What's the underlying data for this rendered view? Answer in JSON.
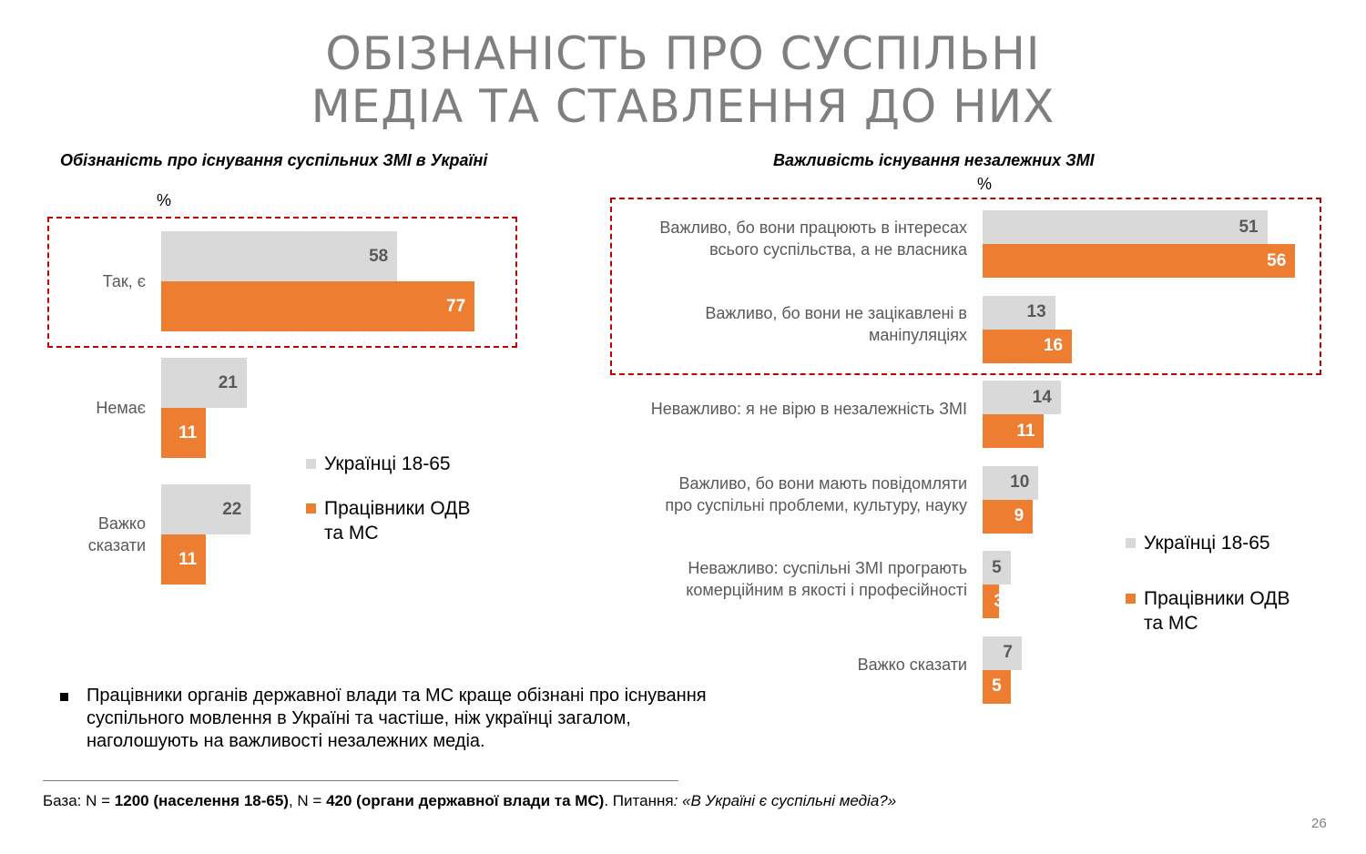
{
  "title": {
    "line1": "ОБІЗНАНІСТЬ ПРО СУСПІЛЬНІ",
    "line2": "МЕДІА ТА СТАВЛЕННЯ ДО НИХ"
  },
  "chart_data": [
    {
      "type": "bar",
      "orientation": "horizontal",
      "title": "Обізнаність про існування суспільних ЗМІ в Україні",
      "unit_label": "%",
      "categories": [
        [
          "Так, є"
        ],
        [
          "Немає"
        ],
        [
          "Важко",
          "сказати"
        ]
      ],
      "series": [
        {
          "name": "Українці 18-65",
          "color": "#d9d9d9",
          "values": [
            58,
            21,
            22
          ]
        },
        {
          "name": "Працівники ОДВ та МС",
          "name_lines": [
            "Працівники ОДВ",
            "та МС"
          ],
          "color": "#ed7d31",
          "values": [
            77,
            11,
            11
          ]
        }
      ],
      "legend": "right",
      "highlighted_categories": [
        0
      ]
    },
    {
      "type": "bar",
      "orientation": "horizontal",
      "title": "Важливість існування незалежних ЗМІ",
      "unit_label": "%",
      "categories": [
        [
          "Важливо, бо вони працюють в інтересах",
          "всього суспільства, а не власника"
        ],
        [
          "Важливо, бо вони не зацікавлені в",
          "маніпуляціях"
        ],
        [
          "Неважливо: я не вірю в незалежність ЗМІ"
        ],
        [
          "Важливо, бо вони мають повідомляти",
          "про суспільні проблеми, культуру, науку"
        ],
        [
          "Неважливо: суспільні ЗМІ програють",
          "комерційним в якості і професійності"
        ],
        [
          "Важко сказати"
        ]
      ],
      "series": [
        {
          "name": "Українці 18-65",
          "color": "#d9d9d9",
          "values": [
            51,
            13,
            14,
            10,
            5,
            7
          ]
        },
        {
          "name": "Працівники ОДВ та МС",
          "name_lines": [
            "Працівники ОДВ",
            "та МС"
          ],
          "color": "#ed7d31",
          "values": [
            56,
            16,
            11,
            9,
            3,
            5
          ]
        }
      ],
      "legend": "right",
      "highlighted_categories": [
        0,
        1
      ]
    }
  ],
  "bullet_text": "Працівники органів державної влади та МС краще обізнані про існування суспільного мовлення в Україні та частіше, ніж українці загалом, наголошують на важливості незалежних медіа.",
  "base": {
    "p1": "База: N = ",
    "b1": "1200 (населення 18-65)",
    "p2": ", N = ",
    "b2": "420 (органи державної влади та МС)",
    "p3": ". Питання",
    "p4": ": «В Україні є суспільні медіа?»"
  },
  "page_number": "26"
}
